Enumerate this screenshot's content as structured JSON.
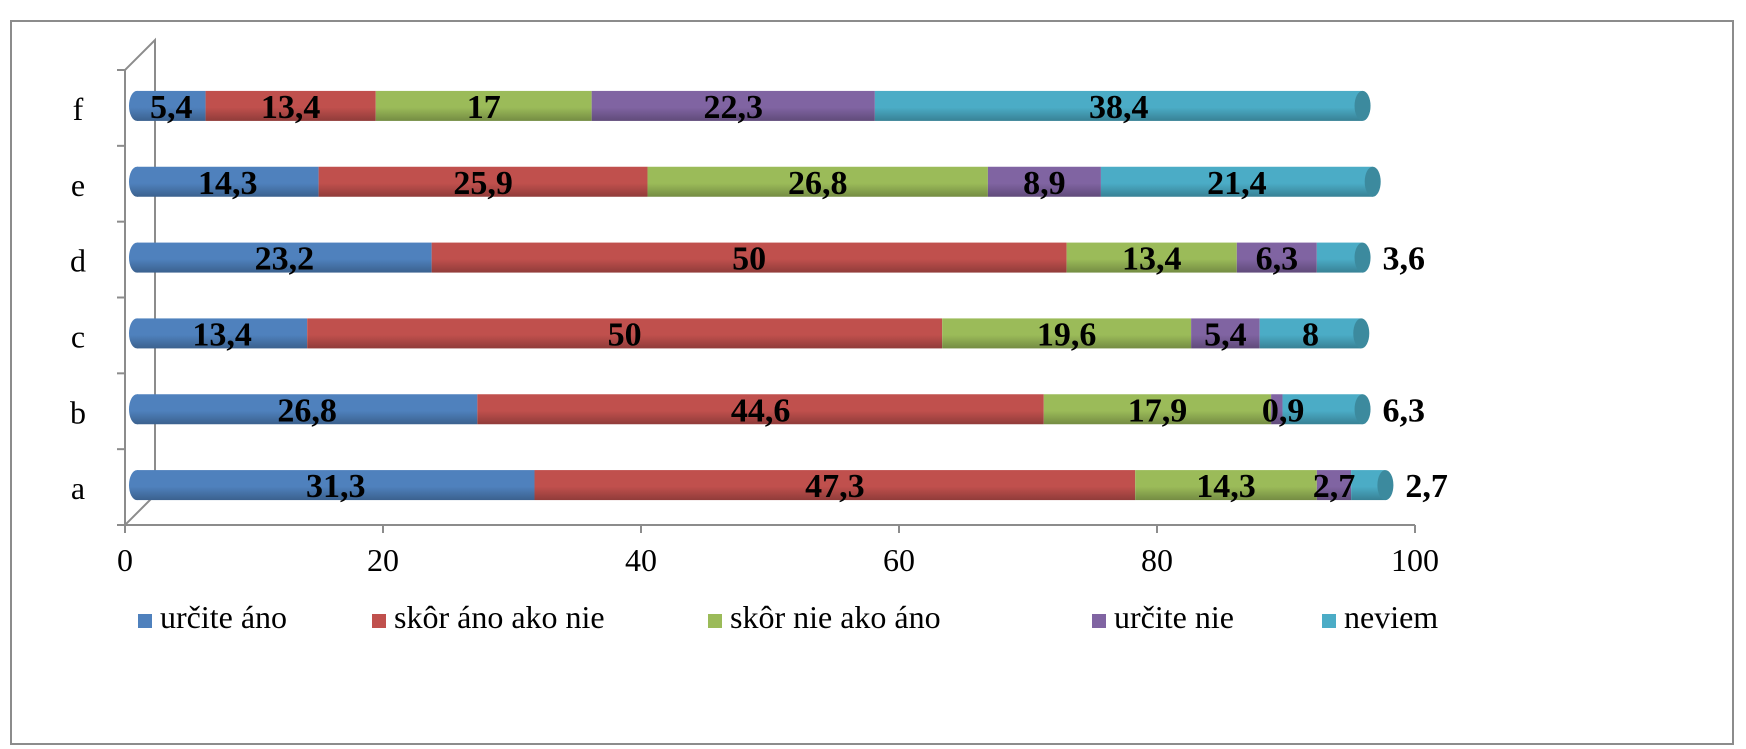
{
  "chart_data": {
    "type": "bar",
    "orientation": "horizontal",
    "stacked": true,
    "title": "",
    "xlabel": "",
    "ylabel": "",
    "categories": [
      "a",
      "b",
      "c",
      "d",
      "e",
      "f"
    ],
    "xlim": [
      0,
      100
    ],
    "x_ticks": [
      0,
      20,
      40,
      60,
      80,
      100
    ],
    "legend_position": "bottom",
    "series": [
      {
        "name": "určite áno",
        "color": "#4f81bd",
        "values": [
          31.3,
          26.8,
          13.4,
          23.2,
          14.3,
          5.4
        ],
        "labels": [
          "31,3",
          "26,8",
          "13,4",
          "23,2",
          "14,3",
          "5,4"
        ]
      },
      {
        "name": "skôr áno ako nie",
        "color": "#c0504d",
        "values": [
          47.3,
          44.6,
          50,
          50,
          25.9,
          13.4
        ],
        "labels": [
          "47,3",
          "44,6",
          "50",
          "50",
          "25,9",
          "13,4"
        ]
      },
      {
        "name": "skôr nie ako áno",
        "color": "#9bbb59",
        "values": [
          14.3,
          17.9,
          19.6,
          13.4,
          26.8,
          17
        ],
        "labels": [
          "14,3",
          "17,9",
          "19,6",
          "13,4",
          "26,8",
          "17"
        ]
      },
      {
        "name": "určite nie",
        "color": "#8064a2",
        "values": [
          2.7,
          0.9,
          5.4,
          6.3,
          8.9,
          22.3
        ],
        "labels": [
          "2,7",
          "0,9",
          "5,4",
          "6,3",
          "8,9",
          "22,3"
        ]
      },
      {
        "name": "neviem",
        "color": "#4bacc6",
        "values": [
          2.7,
          6.3,
          8,
          3.6,
          21.4,
          38.4
        ],
        "labels": [
          "2,7",
          "6,3",
          "8",
          "3,6",
          "21,4",
          "38,4"
        ]
      }
    ]
  }
}
